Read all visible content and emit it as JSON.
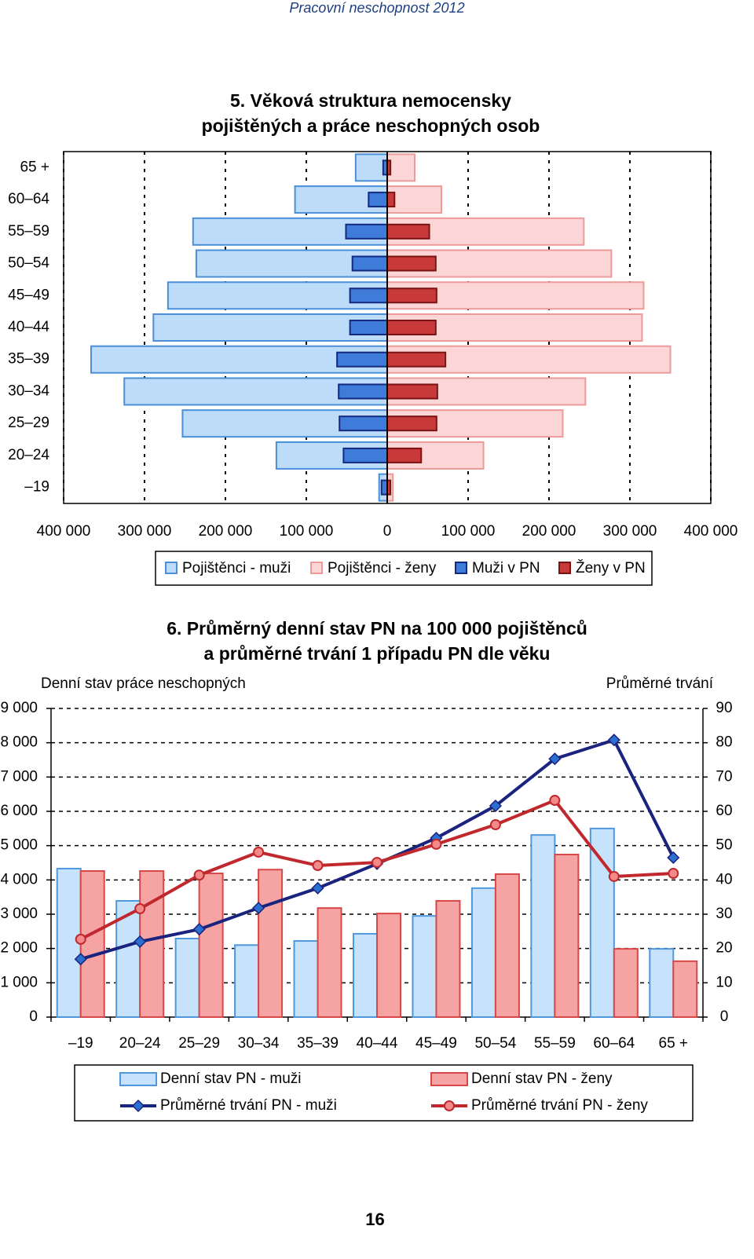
{
  "header": {
    "title": "Pracovní neschopnost 2012"
  },
  "chart_data": [
    {
      "type": "pyramid",
      "title": "5. Věková struktura nemocensky pojištěných a práce neschopných osob",
      "categories": [
        "–19",
        "20–24",
        "25–29",
        "30–34",
        "35–39",
        "40–44",
        "45–49",
        "50–54",
        "55–59",
        "60–64",
        "65 +"
      ],
      "xlim": [
        0,
        400000
      ],
      "xticks": [
        0,
        {
          "value": 100000,
          "label": "100 000"
        },
        {
          "value": 200000,
          "label": "200 000"
        },
        {
          "value": 300000,
          "label": "300 000"
        },
        {
          "value": 400000,
          "label": "400 000"
        }
      ],
      "grid": true,
      "series": [
        {
          "name": "Pojištěnci - muži",
          "side": "left",
          "color": "#bcdcfa",
          "edge": "#4a8fd8",
          "values": [
            10000,
            137000,
            253000,
            325000,
            366000,
            289000,
            271000,
            236000,
            240000,
            114000,
            39000
          ]
        },
        {
          "name": "Pojištěnci - ženy",
          "side": "right",
          "color": "#fcd6d6",
          "edge": "#ec9a9a",
          "values": [
            7000,
            119000,
            217000,
            245000,
            350000,
            315000,
            317000,
            277000,
            243000,
            67000,
            34000
          ]
        },
        {
          "name": "Muži v PN",
          "side": "left",
          "color": "#3f7bd8",
          "edge": "#142a80",
          "values": [
            7000,
            54000,
            59000,
            60000,
            62000,
            46000,
            46000,
            43000,
            51000,
            23000,
            5000
          ]
        },
        {
          "name": "Ženy v PN",
          "side": "right",
          "color": "#c83a3a",
          "edge": "#7a1414",
          "values": [
            4000,
            42000,
            61000,
            62000,
            72000,
            60000,
            61000,
            60000,
            52000,
            9000,
            4000
          ]
        }
      ]
    },
    {
      "type": "bar_line",
      "title": "6. Průměrný denní stav PN na 100 000 pojištěnců a průměrné trvání 1 případu PN dle věku",
      "ylabel": "Denní stav práce neschopných",
      "y2label": "Průměrné trvání",
      "categories": [
        "–19",
        "20–24",
        "25–29",
        "30–34",
        "35–39",
        "40–44",
        "45–49",
        "50–54",
        "55–59",
        "60–64",
        "65 +"
      ],
      "ylim": [
        0,
        9000
      ],
      "yticks": [
        0,
        {
          "value": 1000,
          "label": "1 000"
        },
        {
          "value": 2000,
          "label": "2 000"
        },
        {
          "value": 3000,
          "label": "3 000"
        },
        {
          "value": 4000,
          "label": "4 000"
        },
        {
          "value": 5000,
          "label": "5 000"
        },
        {
          "value": 6000,
          "label": "6 000"
        },
        {
          "value": 7000,
          "label": "7 000"
        },
        {
          "value": 8000,
          "label": "8 000"
        },
        {
          "value": 9000,
          "label": "9 000"
        }
      ],
      "y2lim": [
        0,
        90
      ],
      "y2ticks": [
        0,
        10,
        20,
        30,
        40,
        50,
        60,
        70,
        80,
        90
      ],
      "grid": true,
      "series": [
        {
          "name": "Denní stav PN - muži",
          "kind": "bar",
          "color": "#c6e3fb",
          "edge": "#4f98de",
          "values": [
            4330,
            3390,
            2290,
            2100,
            2220,
            2430,
            2950,
            3760,
            5310,
            5500,
            1990
          ]
        },
        {
          "name": "Denní stav PN - ženy",
          "kind": "bar",
          "color": "#f6a3a3",
          "edge": "#d84848",
          "values": [
            4260,
            4260,
            4190,
            4300,
            3180,
            3020,
            3390,
            4170,
            4740,
            1990,
            1630
          ]
        },
        {
          "name": "Průměrné trvání PN - muži",
          "kind": "line",
          "axis": "y2",
          "marker": "diamond",
          "color": "#1a237e",
          "edge": "#2b6fd0",
          "values": [
            16.9,
            22.0,
            25.6,
            31.8,
            37.6,
            44.7,
            52.2,
            61.6,
            75.3,
            80.8,
            46.5
          ]
        },
        {
          "name": "Průměrné trvání PN - ženy",
          "kind": "line",
          "axis": "y2",
          "marker": "circle",
          "color": "#c0282d",
          "edge": "#f28a8a",
          "values": [
            22.7,
            31.6,
            41.4,
            48.1,
            44.2,
            45.1,
            50.4,
            56.1,
            63.2,
            41.0,
            41.9
          ]
        }
      ]
    }
  ],
  "page_number": "16"
}
